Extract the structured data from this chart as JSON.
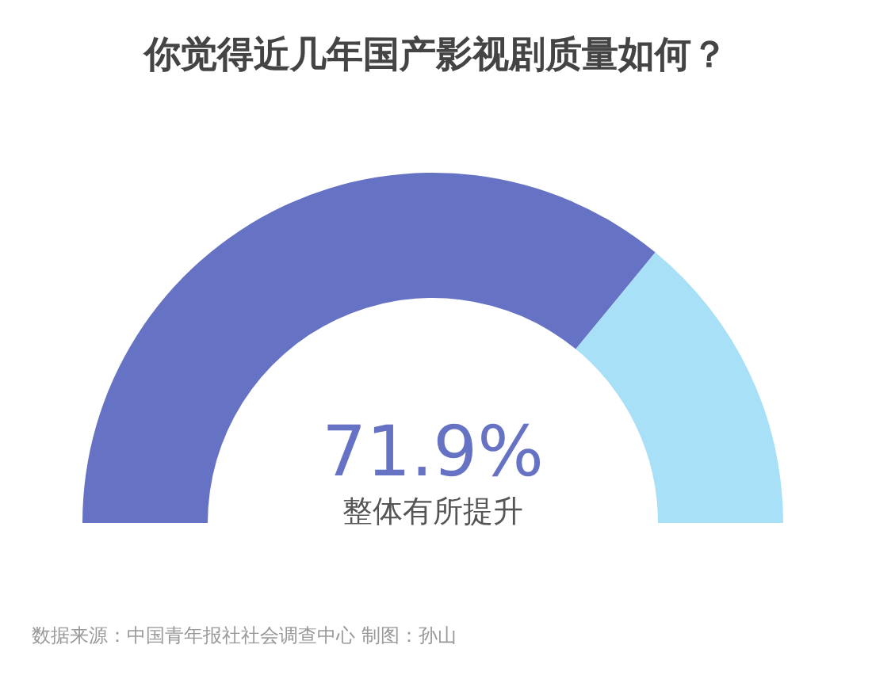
{
  "chart_data": {
    "type": "donut",
    "title": "你觉得近几年国产影视剧质量如何？",
    "categories": [
      "整体有所提升",
      null
    ],
    "values": [
      71.9,
      28.1
    ],
    "colors": [
      "#6673c4",
      "#a8e0f8"
    ],
    "value_labels": [
      "71.9%",
      null
    ],
    "annotations": [
      "数据来源：中国青年报社社会调查中心 制图：孙山"
    ]
  }
}
